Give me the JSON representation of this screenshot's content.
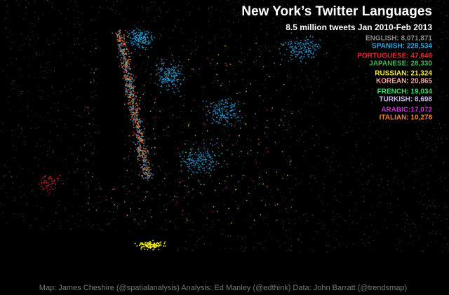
{
  "title": "New York’s Twitter Languages",
  "subtitle": "8.5 million tweets Jan 2010-Feb 2013",
  "legend": {
    "items": [
      {
        "text": "ENGLISH: 8,071,871",
        "color": "#8a8a8a"
      },
      {
        "text": "SPANISH: 228,534",
        "color": "#2fa8e4"
      },
      {
        "text": "PORTUGUESE: 47,646",
        "color": "#e8242c"
      },
      {
        "text": "JAPANESE: 28,330",
        "color": "#3cb44a"
      },
      {
        "text": "RUSSIAN: 21,324",
        "color": "#f2ee22"
      },
      {
        "text": "KOREAN: 20,865",
        "color": "#f4a3a3"
      },
      {
        "text": "FRENCH: 19,034",
        "color": "#34e066"
      },
      {
        "text": "TURKISH: 8,698",
        "color": "#cbb8e8"
      },
      {
        "text": "ARABIC:17,072",
        "color": "#c230c8"
      },
      {
        "text": "ITALIAN: 10,278",
        "color": "#f08424"
      }
    ]
  },
  "credit": "Map: James Cheshire (@spatialanalysis) Analysis: Ed Manley (@edthink) Data: John Barratt (@trendsmap)"
}
